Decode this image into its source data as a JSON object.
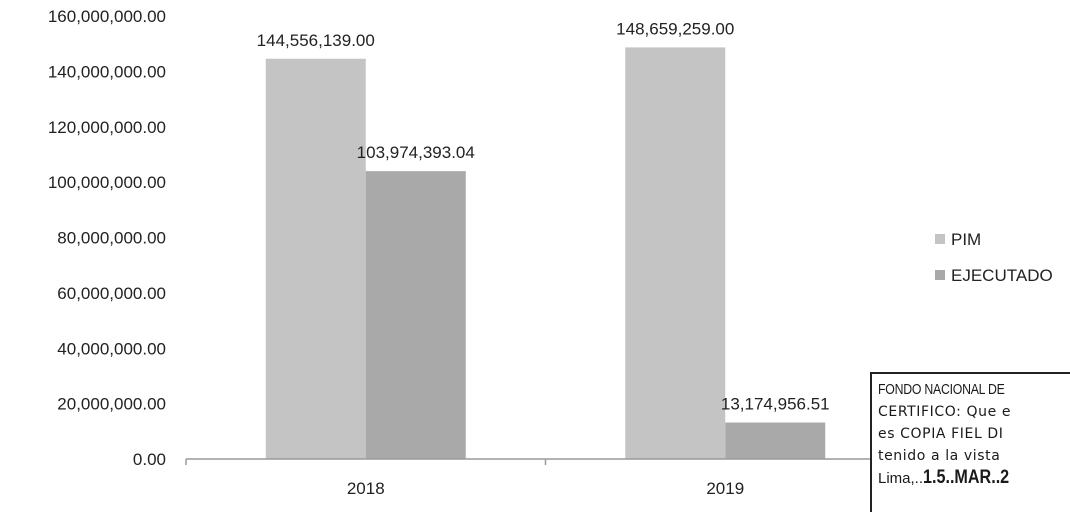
{
  "chart_data": {
    "type": "bar",
    "categories": [
      "2018",
      "2019"
    ],
    "series": [
      {
        "name": "PIM",
        "values": [
          144556139.0,
          148659259.0
        ],
        "labels": [
          "144,556,139.00",
          "148,659,259.00"
        ],
        "color": "#c4c4c4"
      },
      {
        "name": "EJECUTADO",
        "values": [
          103974393.04,
          13174956.51
        ],
        "labels": [
          "103,974,393.04",
          "13,174,956.51"
        ],
        "color": "#a9a9a9"
      }
    ],
    "yticks": [
      "0.00",
      "20,000,000.00",
      "40,000,000.00",
      "60,000,000.00",
      "80,000,000.00",
      "100,000,000.00",
      "120,000,000.00",
      "140,000,000.00",
      "160,000,000.00"
    ],
    "ylim": [
      0,
      160000000
    ],
    "grid": false,
    "legend_position": "right"
  },
  "stamp": {
    "line1": "FONDO NACIONAL DE",
    "line2": "CERTIFICO: Que e",
    "line3": "es COPIA FIEL DI",
    "line4": "tenido a la vista",
    "date_prefix": "Lima,..",
    "date_hand": "1.5..MAR..2"
  }
}
